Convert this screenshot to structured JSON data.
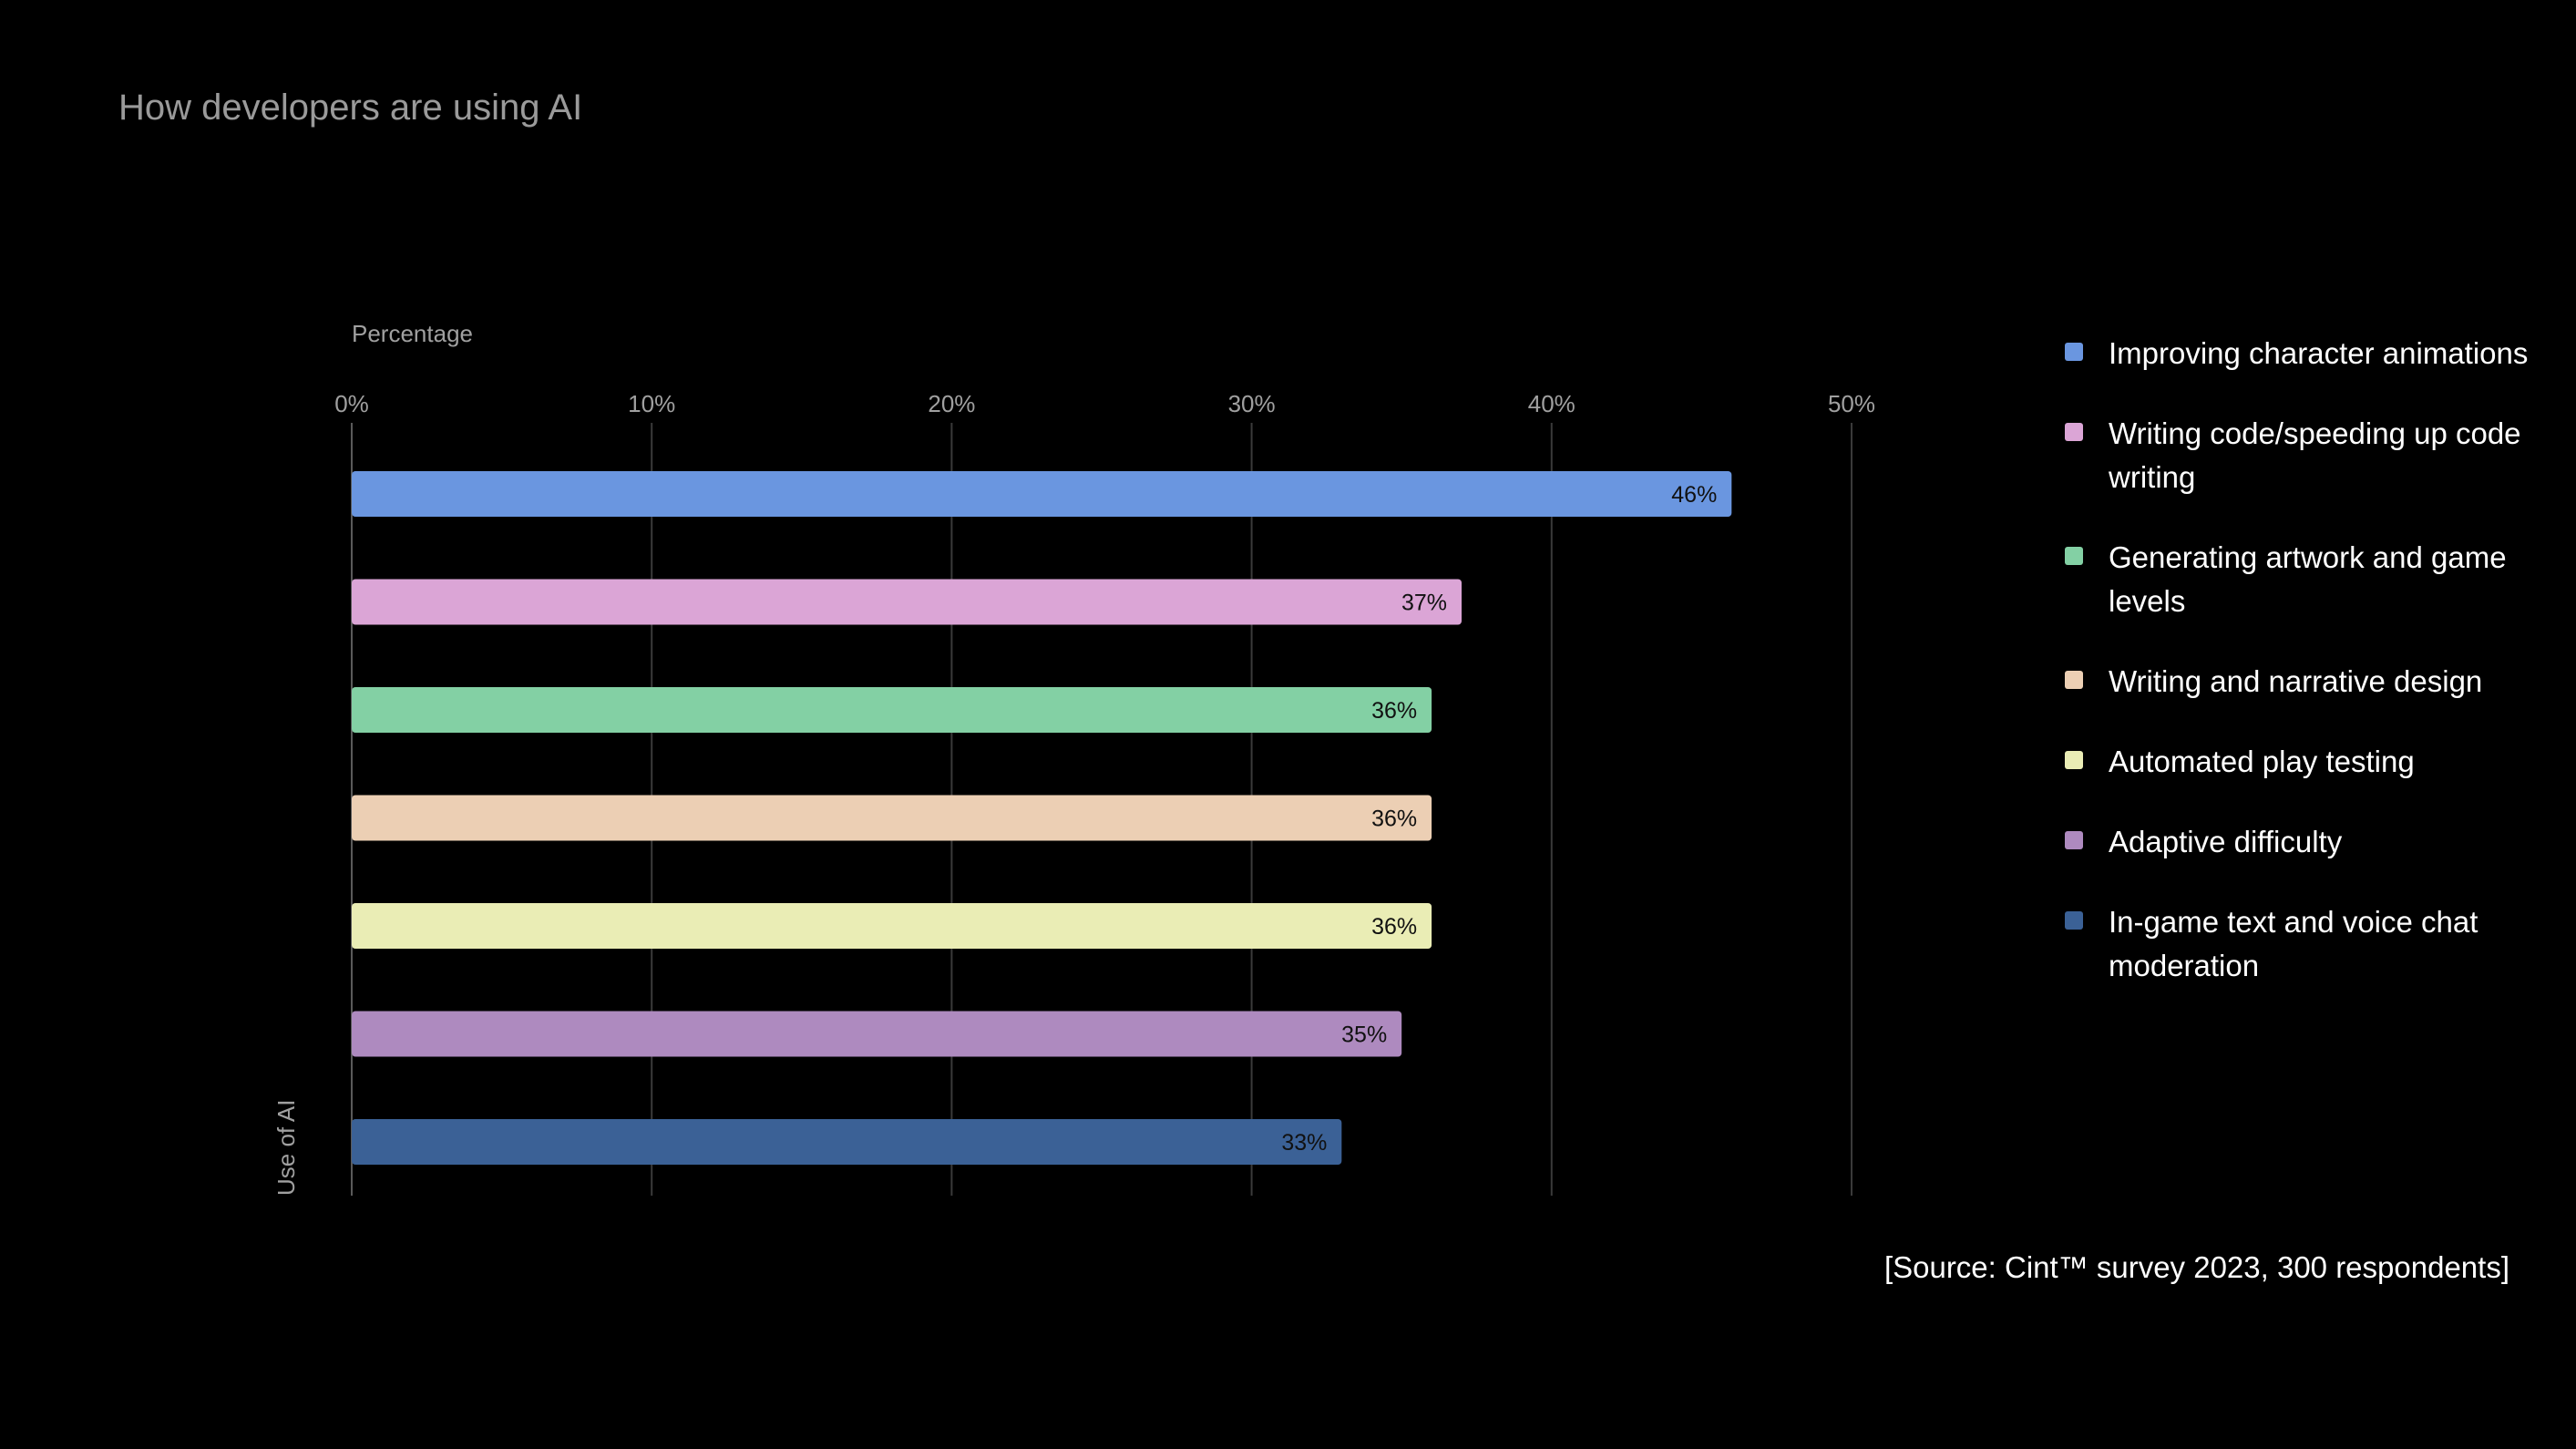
{
  "page": {
    "title": "How developers are using AI",
    "source": "[Source: Cint™ survey 2023, 300 respondents]"
  },
  "chart_data": {
    "type": "bar",
    "orientation": "horizontal",
    "xlabel": "Percentage",
    "ylabel": "Use of AI",
    "xlim": [
      0,
      50
    ],
    "ticks": [
      "0%",
      "10%",
      "20%",
      "30%",
      "40%",
      "50%"
    ],
    "grid": true,
    "legend_position": "right",
    "series": [
      {
        "name": "Improving character animations",
        "value": 46,
        "label": "46%",
        "color": "#6a96e0"
      },
      {
        "name": "Writing code/speeding up code writing",
        "value": 37,
        "label": "37%",
        "color": "#dba5d6"
      },
      {
        "name": "Generating artwork and game levels",
        "value": 36,
        "label": "36%",
        "color": "#83d0a4"
      },
      {
        "name": "Writing and narrative design",
        "value": 36,
        "label": "36%",
        "color": "#eccfb4"
      },
      {
        "name": "Automated play testing",
        "value": 36,
        "label": "36%",
        "color": "#eaedb5"
      },
      {
        "name": "Adaptive difficulty",
        "value": 35,
        "label": "35%",
        "color": "#ae8abf"
      },
      {
        "name": "In-game text and voice chat moderation",
        "value": 33,
        "label": "33%",
        "color": "#3b6196"
      }
    ]
  }
}
